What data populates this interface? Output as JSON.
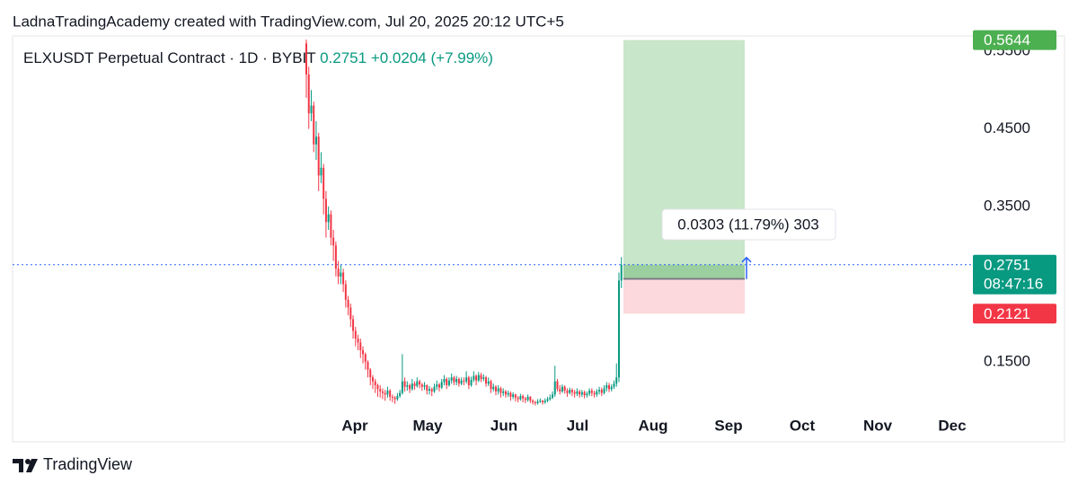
{
  "header": {
    "attribution": "LadnaTradingAcademy created with TradingView.com, Jul 20, 2025 20:12 UTC+5"
  },
  "chart_data": {
    "type": "candlestick",
    "symbol": "ELXUSDT Perpetual Contract · 1D · BYBIT",
    "change": "+0.0204",
    "change_percent": "(+7.99%)",
    "countdown": "08:47:16",
    "up_color": "#089981",
    "down_color": "#f23645",
    "x_labels": [
      "Apr",
      "May",
      "Jun",
      "Jul",
      "Aug",
      "Sep",
      "Oct",
      "Nov",
      "Dec"
    ],
    "ylim": [
      0.0471,
      0.5697
    ],
    "yticks": [
      {
        "value": 0.15,
        "label": "0.1500"
      },
      {
        "value": 0.35,
        "label": "0.3500"
      },
      {
        "value": 0.45,
        "label": "0.4500"
      },
      {
        "value": 0.55,
        "label": "0.5500"
      }
    ],
    "first_open": 0.56,
    "closes": [
      0.52,
      0.47,
      0.48,
      0.43,
      0.44,
      0.39,
      0.4,
      0.36,
      0.33,
      0.34,
      0.31,
      0.3,
      0.27,
      0.26,
      0.265,
      0.25,
      0.23,
      0.22,
      0.205,
      0.19,
      0.18,
      0.175,
      0.165,
      0.16,
      0.15,
      0.14,
      0.13,
      0.125,
      0.12,
      0.115,
      0.112,
      0.11,
      0.108,
      0.113,
      0.105,
      0.104,
      0.102,
      0.106,
      0.11,
      0.125,
      0.118,
      0.12,
      0.115,
      0.122,
      0.119,
      0.125,
      0.121,
      0.118,
      0.12,
      0.113,
      0.115,
      0.112,
      0.118,
      0.121,
      0.117,
      0.124,
      0.128,
      0.12,
      0.126,
      0.13,
      0.124,
      0.128,
      0.122,
      0.126,
      0.125,
      0.13,
      0.12,
      0.127,
      0.132,
      0.126,
      0.133,
      0.128,
      0.13,
      0.122,
      0.125,
      0.115,
      0.118,
      0.112,
      0.116,
      0.11,
      0.112,
      0.108,
      0.11,
      0.105,
      0.108,
      0.104,
      0.102,
      0.106,
      0.103,
      0.101,
      0.105,
      0.1,
      0.098,
      0.097,
      0.099,
      0.1,
      0.098,
      0.1,
      0.102,
      0.104,
      0.108,
      0.125,
      0.115,
      0.112,
      0.118,
      0.113,
      0.11,
      0.114,
      0.111,
      0.109,
      0.112,
      0.108,
      0.111,
      0.107,
      0.109,
      0.113,
      0.11,
      0.108,
      0.112,
      0.114,
      0.11,
      0.116,
      0.12,
      0.115,
      0.118,
      0.122,
      0.13,
      0.2547,
      0.2751
    ],
    "highs": [
      0.565,
      0.53,
      0.5,
      0.485,
      0.46,
      0.445,
      0.42,
      0.405,
      0.37,
      0.35,
      0.345,
      0.32,
      0.305,
      0.28,
      0.275,
      0.27,
      0.255,
      0.235,
      0.225,
      0.21,
      0.195,
      0.185,
      0.18,
      0.17,
      0.162,
      0.152,
      0.142,
      0.133,
      0.128,
      0.122,
      0.12,
      0.116,
      0.114,
      0.118,
      0.115,
      0.108,
      0.106,
      0.11,
      0.114,
      0.16,
      0.13,
      0.125,
      0.122,
      0.128,
      0.125,
      0.13,
      0.127,
      0.123,
      0.124,
      0.121,
      0.119,
      0.117,
      0.122,
      0.126,
      0.123,
      0.128,
      0.133,
      0.13,
      0.13,
      0.135,
      0.132,
      0.132,
      0.13,
      0.13,
      0.13,
      0.138,
      0.132,
      0.131,
      0.138,
      0.134,
      0.137,
      0.136,
      0.134,
      0.132,
      0.13,
      0.127,
      0.122,
      0.12,
      0.12,
      0.118,
      0.116,
      0.114,
      0.113,
      0.112,
      0.111,
      0.109,
      0.106,
      0.109,
      0.108,
      0.105,
      0.108,
      0.106,
      0.102,
      0.1,
      0.102,
      0.103,
      0.101,
      0.103,
      0.105,
      0.108,
      0.112,
      0.145,
      0.128,
      0.12,
      0.121,
      0.12,
      0.116,
      0.117,
      0.116,
      0.114,
      0.116,
      0.114,
      0.114,
      0.113,
      0.112,
      0.116,
      0.116,
      0.113,
      0.115,
      0.118,
      0.117,
      0.12,
      0.124,
      0.123,
      0.121,
      0.126,
      0.148,
      0.265,
      0.285
    ],
    "lows": [
      0.49,
      0.45,
      0.46,
      0.42,
      0.41,
      0.37,
      0.38,
      0.34,
      0.31,
      0.32,
      0.3,
      0.28,
      0.26,
      0.25,
      0.25,
      0.24,
      0.22,
      0.21,
      0.195,
      0.18,
      0.17,
      0.165,
      0.155,
      0.148,
      0.14,
      0.13,
      0.12,
      0.115,
      0.11,
      0.105,
      0.104,
      0.102,
      0.1,
      0.104,
      0.1,
      0.098,
      0.096,
      0.1,
      0.104,
      0.108,
      0.112,
      0.113,
      0.11,
      0.113,
      0.114,
      0.117,
      0.116,
      0.113,
      0.114,
      0.108,
      0.108,
      0.106,
      0.11,
      0.114,
      0.112,
      0.115,
      0.12,
      0.115,
      0.118,
      0.122,
      0.12,
      0.12,
      0.118,
      0.12,
      0.12,
      0.122,
      0.115,
      0.118,
      0.124,
      0.12,
      0.124,
      0.124,
      0.125,
      0.118,
      0.119,
      0.11,
      0.112,
      0.107,
      0.108,
      0.104,
      0.106,
      0.104,
      0.105,
      0.1,
      0.102,
      0.099,
      0.098,
      0.1,
      0.098,
      0.097,
      0.099,
      0.097,
      0.095,
      0.094,
      0.095,
      0.097,
      0.095,
      0.096,
      0.098,
      0.1,
      0.102,
      0.105,
      0.112,
      0.108,
      0.11,
      0.109,
      0.105,
      0.108,
      0.106,
      0.104,
      0.106,
      0.104,
      0.105,
      0.103,
      0.104,
      0.106,
      0.106,
      0.104,
      0.105,
      0.108,
      0.106,
      0.108,
      0.112,
      0.111,
      0.112,
      0.115,
      0.118,
      0.124,
      0.245
    ],
    "position": {
      "entry": 0.257,
      "target": 0.5644,
      "stop": 0.2121,
      "label": "0.0303 (11.79%) 303"
    }
  },
  "footer": {
    "brand": "TradingView"
  }
}
